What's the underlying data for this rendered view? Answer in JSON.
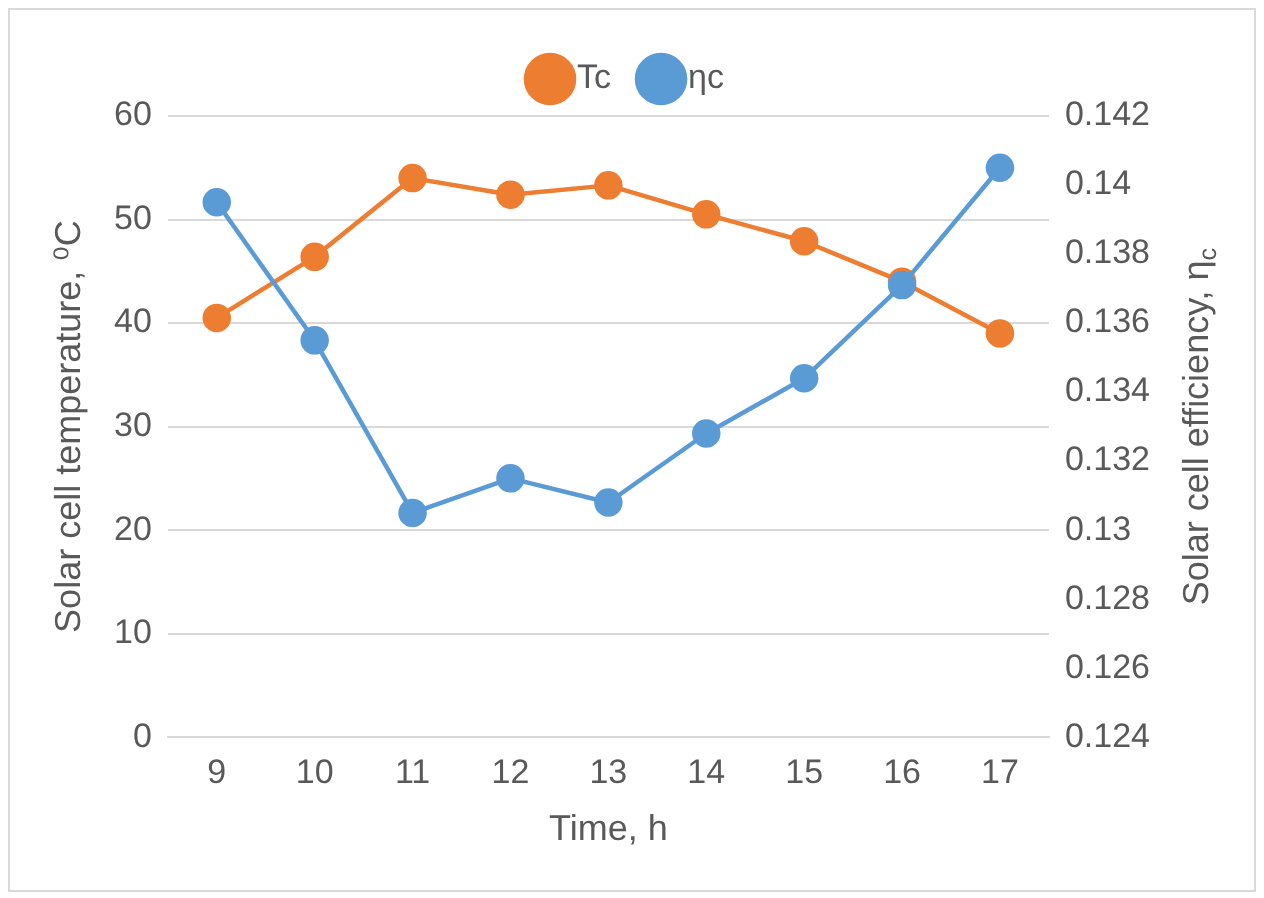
{
  "chart_data": {
    "type": "line",
    "xlabel": "Time, h",
    "ylabel": "Solar cell temperature, ⁰C",
    "y2label": "Solar cell efficiency, η$_{c}$",
    "categories": [
      "9",
      "10",
      "11",
      "12",
      "13",
      "14",
      "15",
      "16",
      "17"
    ],
    "series": [
      {
        "name": "Tc",
        "color": "#ed7d31",
        "values": [
          40.5,
          46.4,
          54,
          52.4,
          53.3,
          50.5,
          47.9,
          44,
          39
        ]
      },
      {
        "name": "ηc",
        "color": "#5b9bd5",
        "axis": "y2",
        "values": [
          0.1395,
          0.1355,
          0.1305,
          0.1315,
          0.1308,
          0.1328,
          0.1344,
          0.1371,
          0.1405
        ]
      }
    ],
    "ylim": [
      0,
      60
    ],
    "yticks": [
      0,
      10,
      20,
      30,
      40,
      50,
      60
    ],
    "y2lim": [
      0.124,
      0.142
    ],
    "y2ticks": [
      0.124,
      0.126,
      0.128,
      0.13,
      0.132,
      0.134,
      0.136,
      0.138,
      0.14,
      0.142
    ],
    "grid": "y",
    "legend": "top",
    "marker": "circle",
    "line_style": "solid"
  }
}
